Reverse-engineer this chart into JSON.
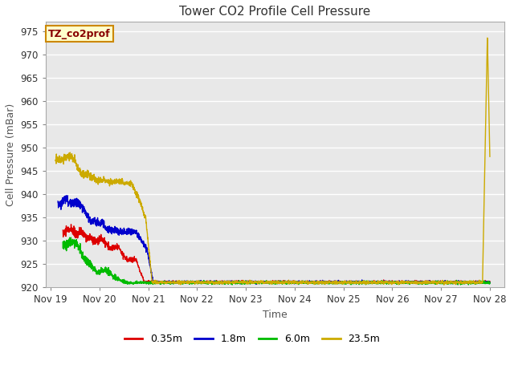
{
  "title": "Tower CO2 Profile Cell Pressure",
  "xlabel": "Time",
  "ylabel": "Cell Pressure (mBar)",
  "ylim": [
    920,
    977
  ],
  "yticks": [
    920,
    925,
    930,
    935,
    940,
    945,
    950,
    955,
    960,
    965,
    970,
    975
  ],
  "fig_bg_color": "#ffffff",
  "plot_bg_color": "#e8e8e8",
  "grid_color": "#ffffff",
  "annotation_text": "TZ_co2prof",
  "annotation_bg": "#ffffcc",
  "annotation_border": "#cc8800",
  "annotation_text_color": "#880000",
  "xtick_labels": [
    "Nov 19",
    "Nov 20",
    "Nov 21",
    "Nov 22",
    "Nov 23",
    "Nov 24",
    "Nov 25",
    "Nov 26",
    "Nov 27",
    "Nov 28"
  ],
  "xtick_positions": [
    0,
    1,
    2,
    3,
    4,
    5,
    6,
    7,
    8,
    9
  ],
  "legend_entries": [
    "0.35m",
    "1.8m",
    "6.0m",
    "23.5m"
  ],
  "legend_colors": [
    "#dd0000",
    "#0000cc",
    "#00bb00",
    "#ccaa00"
  ]
}
